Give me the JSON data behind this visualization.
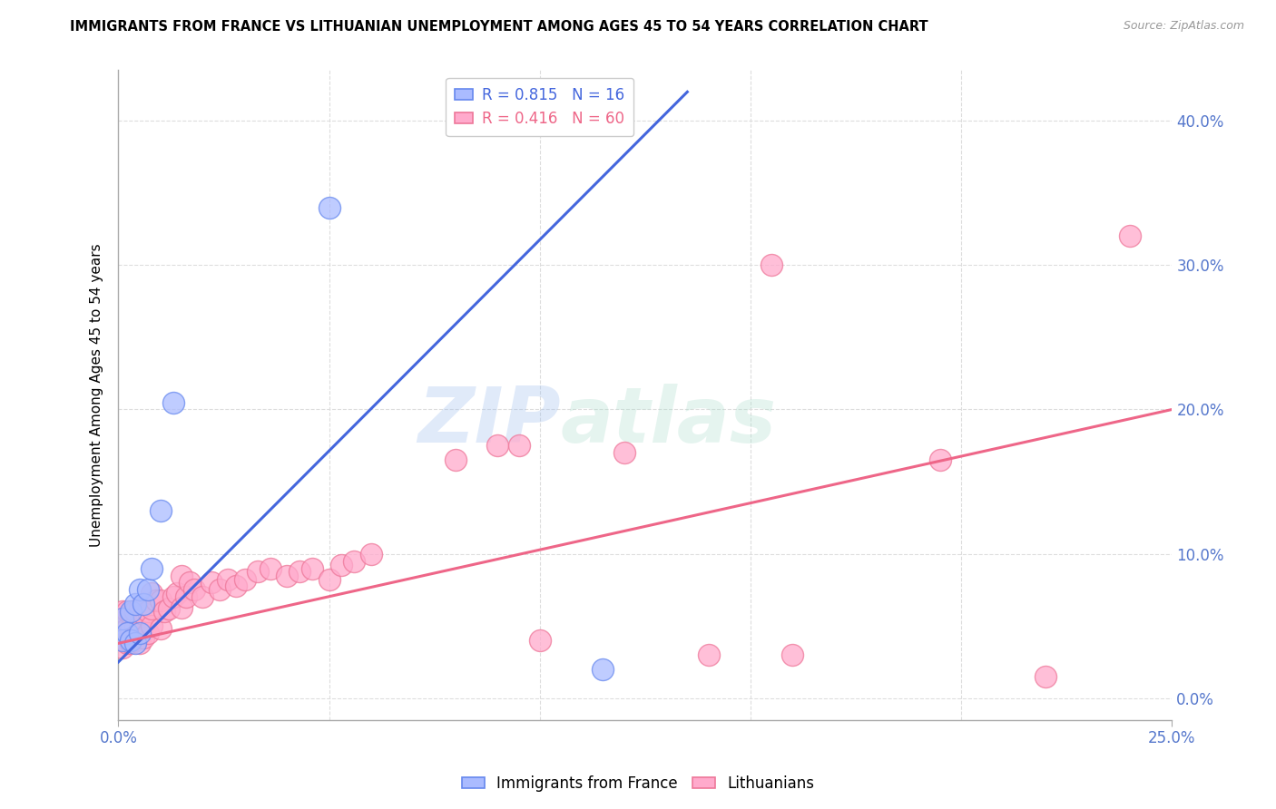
{
  "title": "IMMIGRANTS FROM FRANCE VS LITHUANIAN UNEMPLOYMENT AMONG AGES 45 TO 54 YEARS CORRELATION CHART",
  "source": "Source: ZipAtlas.com",
  "ylabel": "Unemployment Among Ages 45 to 54 years",
  "xlim": [
    0.0,
    0.25
  ],
  "ylim": [
    -0.015,
    0.435
  ],
  "xtick_labels": [
    "0.0%",
    "25.0%"
  ],
  "xtick_positions": [
    0.0,
    0.25
  ],
  "ytick_vals": [
    0.0,
    0.1,
    0.2,
    0.3,
    0.4
  ],
  "ytick_labels": [
    "0.0%",
    "10.0%",
    "20.0%",
    "30.0%",
    "40.0%"
  ],
  "blue_fill": "#AABBFF",
  "blue_edge": "#6688EE",
  "pink_fill": "#FFAACC",
  "pink_edge": "#EE7799",
  "blue_line_color": "#4466DD",
  "pink_line_color": "#EE6688",
  "legend_blue_text": "R = 0.815   N = 16",
  "legend_pink_text": "R = 0.416   N = 60",
  "watermark_zip": "ZIP",
  "watermark_atlas": "atlas",
  "bg_color": "#FFFFFF",
  "grid_color": "#DDDDDD",
  "tick_color": "#5577CC",
  "blue_scatter_x": [
    0.001,
    0.001,
    0.002,
    0.003,
    0.003,
    0.004,
    0.004,
    0.005,
    0.005,
    0.006,
    0.007,
    0.008,
    0.01,
    0.013,
    0.05,
    0.115
  ],
  "blue_scatter_y": [
    0.04,
    0.055,
    0.045,
    0.04,
    0.06,
    0.038,
    0.065,
    0.045,
    0.075,
    0.065,
    0.075,
    0.09,
    0.13,
    0.205,
    0.34,
    0.02
  ],
  "pink_scatter_x": [
    0.001,
    0.001,
    0.001,
    0.002,
    0.002,
    0.002,
    0.003,
    0.003,
    0.003,
    0.004,
    0.004,
    0.004,
    0.005,
    0.005,
    0.005,
    0.006,
    0.006,
    0.007,
    0.007,
    0.008,
    0.008,
    0.008,
    0.009,
    0.01,
    0.01,
    0.011,
    0.012,
    0.013,
    0.014,
    0.015,
    0.015,
    0.016,
    0.017,
    0.018,
    0.02,
    0.022,
    0.024,
    0.026,
    0.028,
    0.03,
    0.033,
    0.036,
    0.04,
    0.043,
    0.046,
    0.05,
    0.053,
    0.056,
    0.06,
    0.08,
    0.09,
    0.095,
    0.1,
    0.12,
    0.14,
    0.155,
    0.16,
    0.195,
    0.22,
    0.24
  ],
  "pink_scatter_y": [
    0.035,
    0.042,
    0.06,
    0.038,
    0.048,
    0.06,
    0.038,
    0.048,
    0.058,
    0.04,
    0.05,
    0.06,
    0.038,
    0.05,
    0.063,
    0.042,
    0.058,
    0.045,
    0.06,
    0.05,
    0.062,
    0.073,
    0.068,
    0.048,
    0.068,
    0.06,
    0.062,
    0.07,
    0.073,
    0.063,
    0.085,
    0.07,
    0.08,
    0.075,
    0.07,
    0.08,
    0.075,
    0.082,
    0.078,
    0.082,
    0.088,
    0.09,
    0.085,
    0.088,
    0.09,
    0.082,
    0.092,
    0.095,
    0.1,
    0.165,
    0.175,
    0.175,
    0.04,
    0.17,
    0.03,
    0.3,
    0.03,
    0.165,
    0.015,
    0.32
  ],
  "blue_line_x0": 0.0,
  "blue_line_y0": 0.025,
  "blue_line_x1": 0.135,
  "blue_line_y1": 0.42,
  "pink_line_x0": 0.0,
  "pink_line_y0": 0.038,
  "pink_line_x1": 0.25,
  "pink_line_y1": 0.2
}
